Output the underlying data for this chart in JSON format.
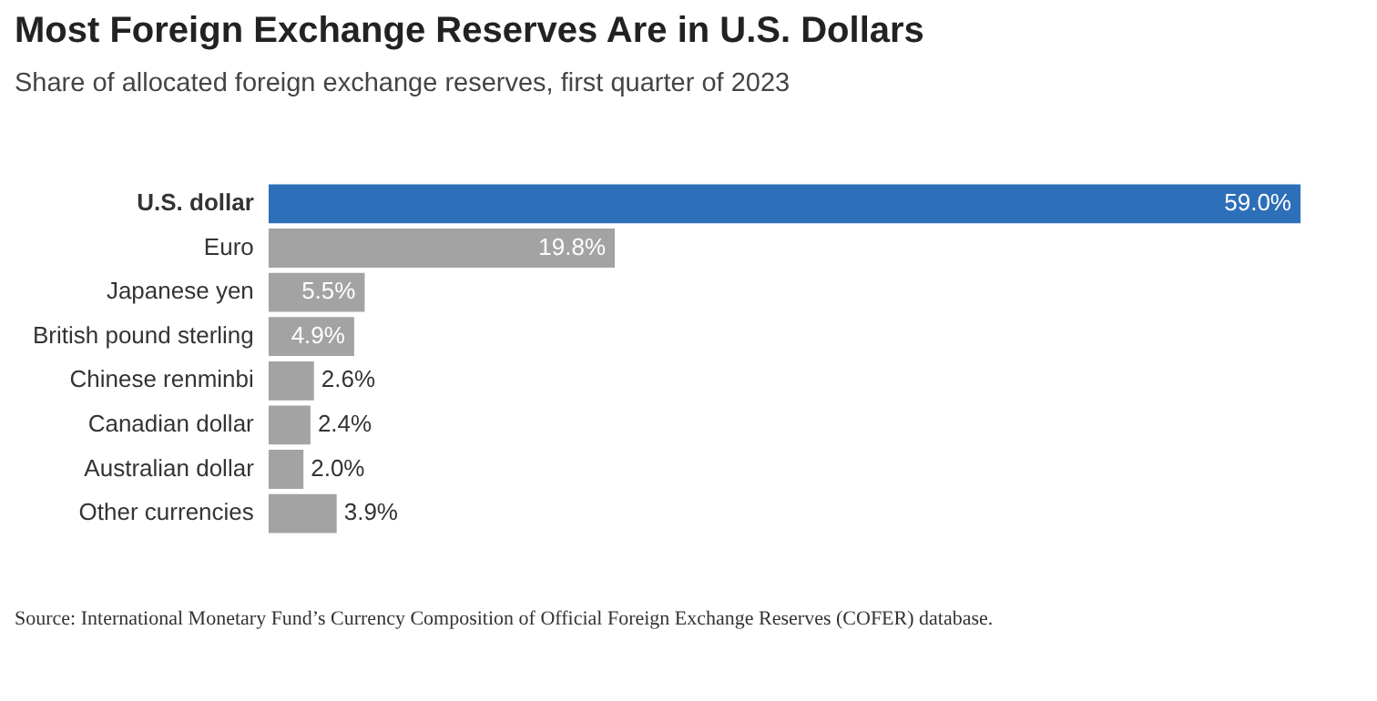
{
  "chart_data": {
    "type": "bar",
    "orientation": "horizontal",
    "title": "Most Foreign Exchange Reserves Are in U.S. Dollars",
    "subtitle": "Share of allocated foreign exchange reserves, first quarter of 2023",
    "categories": [
      "U.S. dollar",
      "Euro",
      "Japanese yen",
      "British pound sterling",
      "Chinese renminbi",
      "Canadian dollar",
      "Australian dollar",
      "Other currencies"
    ],
    "values": [
      59.0,
      19.8,
      5.5,
      4.9,
      2.6,
      2.4,
      2.0,
      3.9
    ],
    "value_labels": [
      "59.0%",
      "19.8%",
      "5.5%",
      "4.9%",
      "2.6%",
      "2.4%",
      "2.0%",
      "3.9%"
    ],
    "colors": [
      "#2e6fba",
      "#a3a3a3",
      "#a3a3a3",
      "#a3a3a3",
      "#a3a3a3",
      "#a3a3a3",
      "#a3a3a3",
      "#a3a3a3"
    ],
    "xlim": [
      0,
      59
    ],
    "tick_labels": "y",
    "grid": false,
    "legend": false,
    "annotations": [
      "Source: International Monetary Fund’s Currency Composition of Official Foreign Exchange Reserves (COFER) database."
    ]
  }
}
